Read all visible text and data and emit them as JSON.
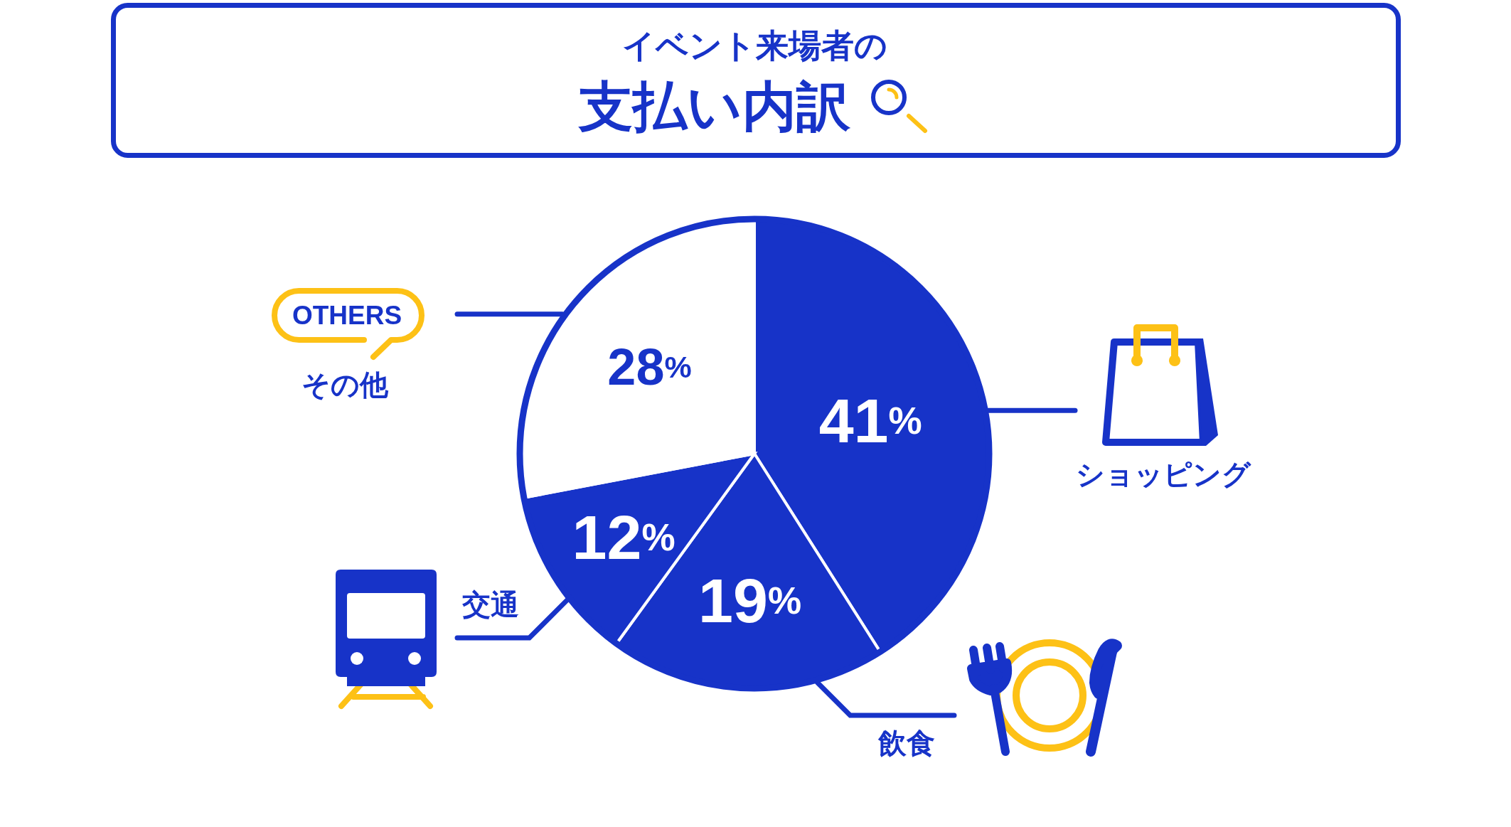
{
  "chart_data": {
    "type": "pie",
    "subtitle": "イベント来場者の",
    "title": "支払い内訳",
    "categories": [
      "ショッピング",
      "飲食",
      "交通",
      "その他"
    ],
    "values": [
      41,
      19,
      12,
      28
    ],
    "colors": [
      "#1733c8",
      "#1733c8",
      "#1733c8",
      "#ffffff"
    ],
    "value_labels": [
      "41%",
      "19%",
      "12%",
      "28%"
    ],
    "annotations": [
      "OTHERS"
    ]
  }
}
